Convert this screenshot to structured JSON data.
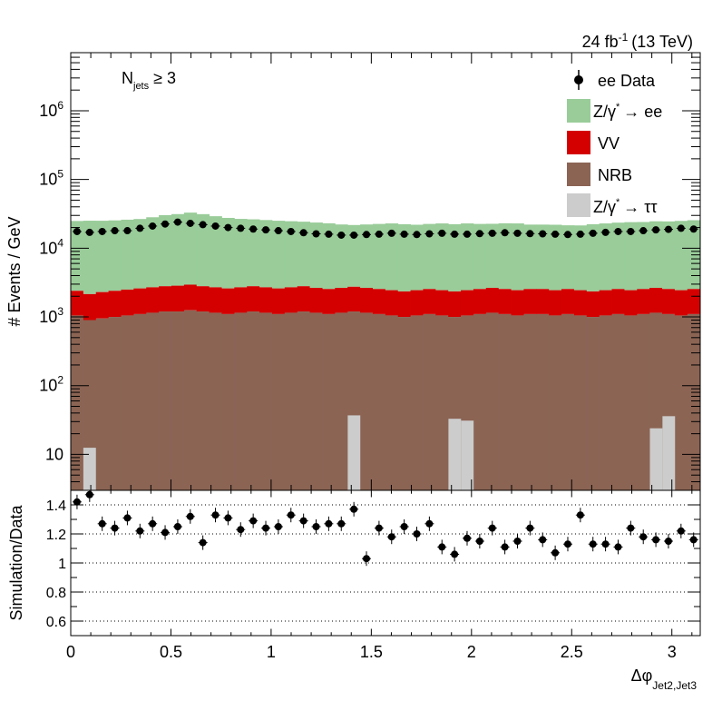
{
  "chart_data": [
    {
      "panel": "main",
      "type": "bar",
      "title": "24 fb-1 (13 TeV)",
      "lumi_label": "24 fb",
      "lumi_exp": "-1",
      "energy_label": "(13 TeV)",
      "annotation": {
        "main": "N",
        "sub": "jets",
        "rel": "≥ 3"
      },
      "ylabel": "# Events / GeV",
      "yscale": "log",
      "ylim": [
        3,
        7000000
      ],
      "xlim": [
        0,
        3.1416
      ],
      "bin_width": 0.0628,
      "y_ticks": [
        {
          "value": 10,
          "label": "10",
          "exp": ""
        },
        {
          "value": 100,
          "label": "10",
          "exp": "2"
        },
        {
          "value": 1000,
          "label": "10",
          "exp": "3"
        },
        {
          "value": 10000,
          "label": "10",
          "exp": "4"
        },
        {
          "value": 100000,
          "label": "10",
          "exp": "5"
        },
        {
          "value": 1000000,
          "label": "10",
          "exp": "6"
        }
      ],
      "legend_position": "top-right",
      "legend": [
        {
          "key": "data",
          "label": "ee Data",
          "style": "marker"
        },
        {
          "key": "dy_ee",
          "label_main": "Z/γ",
          "label_sup": "*",
          "label_arrow": "→ ee",
          "style": "box"
        },
        {
          "key": "vv",
          "label": "VV",
          "style": "box"
        },
        {
          "key": "nrb",
          "label": "NRB",
          "style": "box"
        },
        {
          "key": "dy_tautau",
          "label_main": "Z/γ",
          "label_sup": "*",
          "label_arrow": "→ ττ",
          "style": "box"
        }
      ],
      "series": [
        {
          "key": "nrb",
          "name": "NRB",
          "color": "#8b6454",
          "values": [
            1050,
            900,
            950,
            1000,
            1050,
            1100,
            1150,
            1200,
            1200,
            1250,
            1200,
            1150,
            1100,
            1150,
            1200,
            1150,
            1100,
            1150,
            1200,
            1150,
            1100,
            1150,
            1200,
            1150,
            1100,
            1050,
            1000,
            1050,
            1100,
            1050,
            1000,
            1050,
            1100,
            1150,
            1100,
            1050,
            1100,
            1100,
            1050,
            1100,
            1050,
            1000,
            1050,
            1100,
            1050,
            1100,
            1150,
            1100,
            1050,
            1100
          ]
        },
        {
          "key": "vv",
          "name": "VV",
          "color": "#d40000",
          "values": [
            1350,
            1250,
            1350,
            1400,
            1450,
            1500,
            1550,
            1600,
            1650,
            1700,
            1600,
            1550,
            1500,
            1550,
            1600,
            1550,
            1500,
            1550,
            1600,
            1500,
            1450,
            1500,
            1550,
            1500,
            1450,
            1400,
            1350,
            1400,
            1450,
            1400,
            1350,
            1400,
            1450,
            1500,
            1450,
            1400,
            1450,
            1450,
            1400,
            1450,
            1400,
            1350,
            1400,
            1450,
            1400,
            1450,
            1500,
            1450,
            1400,
            1450
          ]
        },
        {
          "key": "dy_ee",
          "name": "Z/γ* → ee",
          "color": "#99cc99",
          "values": [
            22500,
            23000,
            22800,
            23000,
            23500,
            24000,
            25500,
            27500,
            28500,
            30000,
            28500,
            26500,
            25000,
            24000,
            23500,
            23000,
            22500,
            22000,
            21500,
            21000,
            20500,
            19500,
            19000,
            19500,
            20000,
            20500,
            20000,
            19500,
            20000,
            20500,
            20000,
            20500,
            20000,
            20000,
            20500,
            20500,
            19500,
            19500,
            19500,
            19000,
            19000,
            20000,
            20500,
            21000,
            21500,
            21500,
            22000,
            22000,
            22500,
            23000
          ]
        },
        {
          "key": "dy_tautau",
          "name": "Z/γ* → ττ",
          "color": "#cccccc",
          "bins": [
            {
              "xlo": 0.0628,
              "xhi": 0.1257,
              "value": 12.5
            },
            {
              "xlo": 1.3823,
              "xhi": 1.4451,
              "value": 37
            },
            {
              "xlo": 1.885,
              "xhi": 1.9478,
              "value": 33
            },
            {
              "xlo": 1.9478,
              "xhi": 2.0106,
              "value": 31
            },
            {
              "xlo": 2.8903,
              "xhi": 2.9531,
              "value": 24
            },
            {
              "xlo": 2.9531,
              "xhi": 3.0159,
              "value": 36
            }
          ]
        },
        {
          "key": "data",
          "name": "ee Data",
          "color": "#000000",
          "values": [
            17500,
            17000,
            17500,
            18000,
            18000,
            19500,
            21000,
            22500,
            24000,
            23000,
            22000,
            21000,
            20000,
            19500,
            19000,
            18500,
            18000,
            17500,
            16800,
            16200,
            16000,
            15500,
            15500,
            15800,
            16000,
            16500,
            16000,
            15800,
            16200,
            16500,
            16000,
            16000,
            16300,
            16500,
            16800,
            16500,
            16300,
            16200,
            16000,
            15800,
            16000,
            16500,
            17000,
            17500,
            17500,
            18000,
            18500,
            18800,
            19500,
            19000
          ]
        }
      ]
    },
    {
      "panel": "ratio",
      "type": "scatter",
      "ylabel": "Simulation/Data",
      "xlabel": "Δφ",
      "xlabel_sub": "Jet2,Jet3",
      "ylim": [
        0.5,
        1.5
      ],
      "xlim": [
        0,
        3.1416
      ],
      "x_ticks": [
        "0",
        "0.5",
        "1",
        "1.5",
        "2",
        "2.5",
        "3"
      ],
      "y_ticks": [
        "0.6",
        "0.8",
        "1",
        "1.2",
        "1.4"
      ],
      "grid": "dotted at y ticks",
      "values": [
        1.42,
        1.47,
        1.27,
        1.24,
        1.31,
        1.22,
        1.27,
        1.21,
        1.25,
        1.32,
        1.14,
        1.33,
        1.31,
        1.23,
        1.29,
        1.24,
        1.25,
        1.33,
        1.29,
        1.25,
        1.27,
        1.27,
        1.37,
        1.03,
        1.24,
        1.18,
        1.25,
        1.2,
        1.27,
        1.11,
        1.06,
        1.17,
        1.15,
        1.24,
        1.11,
        1.15,
        1.24,
        1.16,
        1.07,
        1.13,
        1.33,
        1.13,
        1.13,
        1.11,
        1.24,
        1.18,
        1.16,
        1.15,
        1.22,
        1.16
      ],
      "errors": [
        0.05,
        0.05,
        0.05,
        0.05,
        0.05,
        0.05,
        0.05,
        0.05,
        0.05,
        0.05,
        0.05,
        0.05,
        0.05,
        0.05,
        0.05,
        0.05,
        0.05,
        0.05,
        0.05,
        0.05,
        0.05,
        0.05,
        0.05,
        0.05,
        0.05,
        0.05,
        0.05,
        0.05,
        0.05,
        0.05,
        0.05,
        0.05,
        0.05,
        0.05,
        0.05,
        0.05,
        0.05,
        0.05,
        0.05,
        0.05,
        0.05,
        0.05,
        0.05,
        0.05,
        0.05,
        0.05,
        0.05,
        0.05,
        0.05,
        0.05
      ]
    }
  ]
}
